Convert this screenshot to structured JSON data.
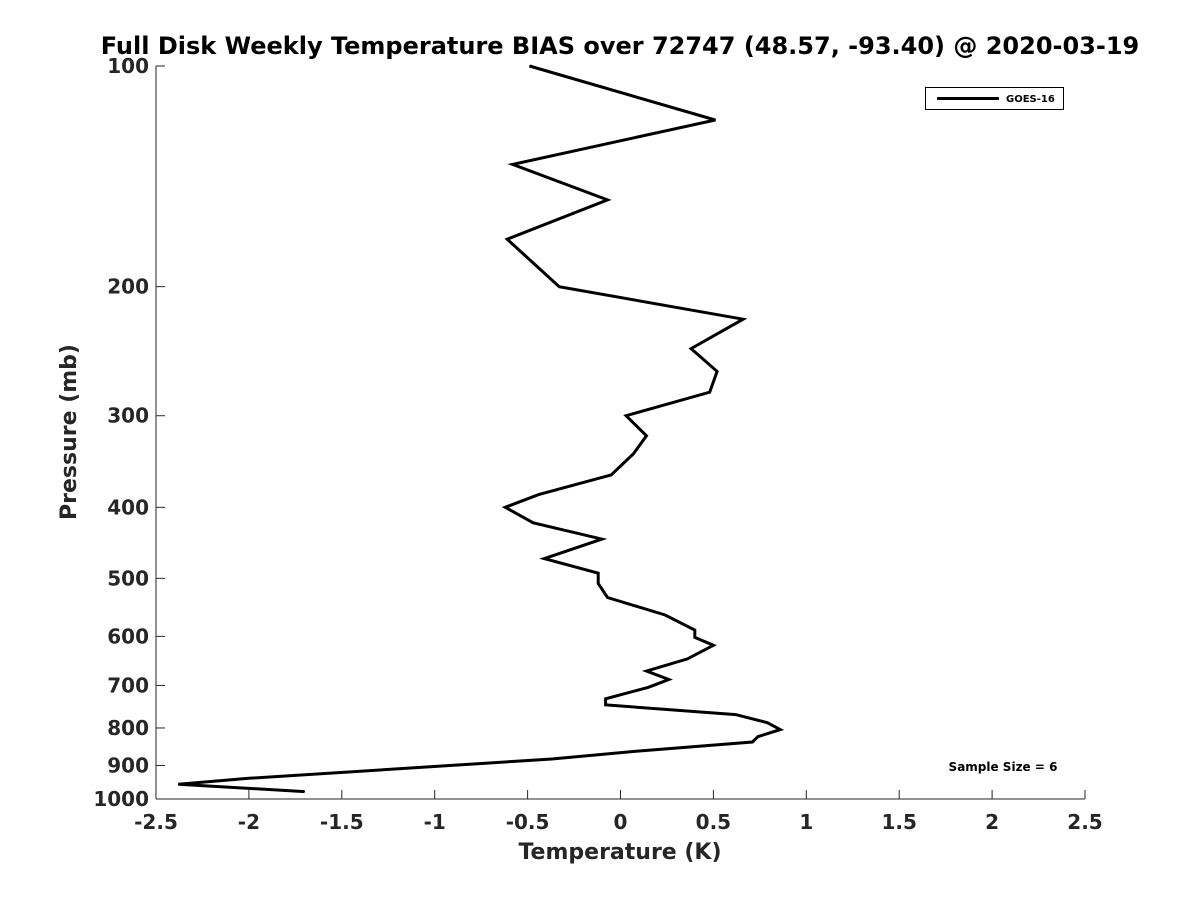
{
  "chart_data": {
    "type": "line",
    "title": "Full Disk Weekly Temperature BIAS over 72747 (48.57, -93.40) @ 2020-03-19",
    "xlabel": "Temperature (K)",
    "ylabel": "Pressure (mb)",
    "xlim": [
      -2.5,
      2.5
    ],
    "ylim": [
      100,
      1000
    ],
    "y_scale": "log",
    "y_reversed": true,
    "x_ticks": [
      "-2.5",
      "-2",
      "-1.5",
      "-1",
      "-0.5",
      "0",
      "0.5",
      "1",
      "1.5",
      "2",
      "2.5"
    ],
    "y_ticks": [
      "100",
      "200",
      "300",
      "400",
      "500",
      "600",
      "700",
      "800",
      "900",
      "1000"
    ],
    "legend": {
      "position": "top-right",
      "entries": [
        "GOES-16"
      ]
    },
    "annotation": "Sample Size = 6",
    "grid": false,
    "series": [
      {
        "name": "GOES-16",
        "color": "#000000",
        "points": [
          [
            -0.49,
            100
          ],
          [
            0.51,
            118.5
          ],
          [
            -0.58,
            136.2
          ],
          [
            -0.07,
            152.3
          ],
          [
            -0.61,
            172.3
          ],
          [
            -0.33,
            200
          ],
          [
            0.66,
            221.5
          ],
          [
            0.38,
            243
          ],
          [
            0.52,
            261
          ],
          [
            0.48,
            278.6
          ],
          [
            0.03,
            300
          ],
          [
            0.14,
            319.5
          ],
          [
            0.07,
            338
          ],
          [
            -0.05,
            361.3
          ],
          [
            -0.44,
            384.3
          ],
          [
            -0.62,
            400
          ],
          [
            -0.47,
            420
          ],
          [
            -0.1,
            442
          ],
          [
            -0.41,
            470
          ],
          [
            -0.12,
            492
          ],
          [
            -0.12,
            508
          ],
          [
            -0.07,
            531
          ],
          [
            0.24,
            561.1
          ],
          [
            0.4,
            588
          ],
          [
            0.4,
            602
          ],
          [
            0.5,
            617
          ],
          [
            0.36,
            644
          ],
          [
            0.14,
            669
          ],
          [
            0.26,
            687
          ],
          [
            0.15,
            704
          ],
          [
            -0.08,
            730
          ],
          [
            -0.08,
            744
          ],
          [
            0.62,
            767
          ],
          [
            0.79,
            787
          ],
          [
            0.86,
            804
          ],
          [
            0.74,
            822
          ],
          [
            0.71,
            836
          ],
          [
            0.1,
            860
          ],
          [
            -0.37,
            882
          ],
          [
            -2.0,
            937
          ],
          [
            -2.38,
            955
          ],
          [
            -1.7,
            977
          ]
        ]
      }
    ]
  }
}
